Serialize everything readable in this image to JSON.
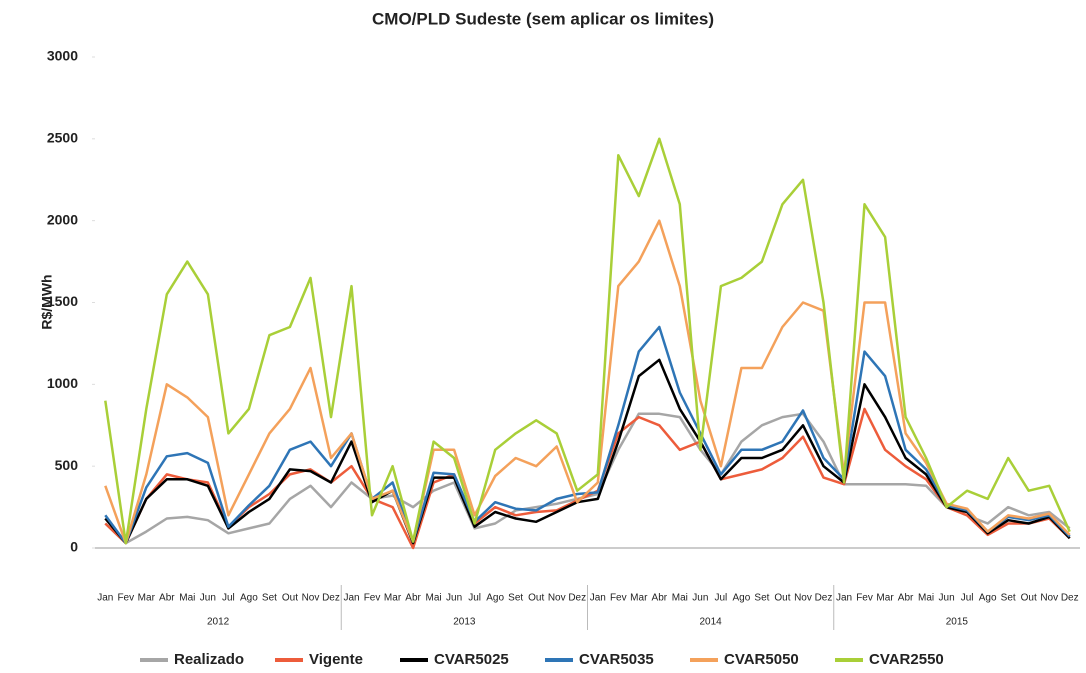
{
  "chart_data": {
    "type": "line",
    "title": "CMO/PLD Sudeste (sem aplicar os limites)",
    "y_label": "R$/MWh",
    "categories": [
      "Jan",
      "Fev",
      "Mar",
      "Abr",
      "Mai",
      "Jun",
      "Jul",
      "Ago",
      "Set",
      "Out",
      "Nov",
      "Dez",
      "Jan",
      "Fev",
      "Mar",
      "Abr",
      "Mai",
      "Jun",
      "Jul",
      "Ago",
      "Set",
      "Out",
      "Nov",
      "Dez",
      "Jan",
      "Fev",
      "Mar",
      "Abr",
      "Mai",
      "Jun",
      "Jul",
      "Ago",
      "Set",
      "Out",
      "Nov",
      "Dez",
      "Jan",
      "Fev",
      "Mar",
      "Abr",
      "Mai",
      "Jun",
      "Jul",
      "Ago",
      "Set",
      "Out",
      "Nov",
      "Dez"
    ],
    "years": [
      "2012",
      "2013",
      "2014",
      "2015"
    ],
    "ylim": [
      0,
      3000
    ],
    "yticks": [
      0,
      500,
      1000,
      1500,
      2000,
      2500,
      3000
    ],
    "series": [
      {
        "name": "Realizado",
        "color": "#a6a6a6",
        "values": [
          150,
          30,
          100,
          180,
          190,
          170,
          90,
          120,
          150,
          300,
          380,
          250,
          400,
          300,
          320,
          250,
          350,
          400,
          120,
          150,
          230,
          250,
          270,
          300,
          330,
          600,
          820,
          820,
          800,
          600,
          450,
          650,
          750,
          800,
          820,
          650,
          390,
          390,
          390,
          390,
          380,
          250,
          200,
          150,
          250,
          200,
          220,
          120
        ]
      },
      {
        "name": "Vigente",
        "color": "#ed5c3b",
        "values": [
          150,
          30,
          300,
          450,
          420,
          400,
          130,
          250,
          330,
          450,
          480,
          400,
          500,
          300,
          250,
          0,
          400,
          450,
          150,
          250,
          200,
          220,
          230,
          290,
          350,
          700,
          800,
          750,
          600,
          650,
          420,
          450,
          480,
          550,
          680,
          430,
          390,
          850,
          600,
          500,
          420,
          250,
          200,
          80,
          150,
          150,
          180,
          60
        ]
      },
      {
        "name": "CVAR5025",
        "color": "#000000",
        "values": [
          180,
          30,
          300,
          420,
          420,
          380,
          120,
          220,
          300,
          480,
          470,
          400,
          650,
          280,
          350,
          30,
          430,
          430,
          130,
          220,
          180,
          160,
          220,
          280,
          300,
          650,
          1050,
          1150,
          850,
          650,
          420,
          550,
          550,
          600,
          750,
          500,
          400,
          1000,
          800,
          550,
          450,
          250,
          220,
          90,
          170,
          150,
          190,
          60
        ]
      },
      {
        "name": "CVAR5035",
        "color": "#2e75b6",
        "values": [
          200,
          30,
          370,
          560,
          580,
          520,
          130,
          260,
          380,
          600,
          650,
          500,
          700,
          300,
          400,
          40,
          460,
          450,
          160,
          280,
          240,
          230,
          300,
          330,
          340,
          750,
          1200,
          1350,
          950,
          700,
          450,
          600,
          600,
          650,
          840,
          550,
          420,
          1200,
          1050,
          600,
          480,
          260,
          230,
          100,
          190,
          170,
          200,
          70
        ]
      },
      {
        "name": "CVAR5050",
        "color": "#f4a15b",
        "values": [
          380,
          30,
          450,
          1000,
          920,
          800,
          200,
          450,
          700,
          850,
          1100,
          550,
          700,
          300,
          350,
          40,
          600,
          600,
          200,
          440,
          550,
          500,
          620,
          280,
          400,
          1600,
          1750,
          2000,
          1600,
          900,
          500,
          1100,
          1100,
          1350,
          1500,
          1450,
          450,
          1500,
          1500,
          700,
          520,
          270,
          240,
          100,
          200,
          180,
          210,
          80
        ]
      },
      {
        "name": "CVAR2550",
        "color": "#a9cf38",
        "values": [
          900,
          30,
          850,
          1550,
          1750,
          1550,
          700,
          850,
          1300,
          1350,
          1650,
          800,
          1600,
          200,
          500,
          40,
          650,
          550,
          150,
          600,
          700,
          780,
          700,
          350,
          450,
          2400,
          2150,
          2500,
          2100,
          600,
          1600,
          1650,
          1750,
          2100,
          2250,
          1500,
          400,
          2100,
          1900,
          800,
          550,
          250,
          350,
          300,
          550,
          350,
          380,
          100
        ]
      }
    ]
  }
}
